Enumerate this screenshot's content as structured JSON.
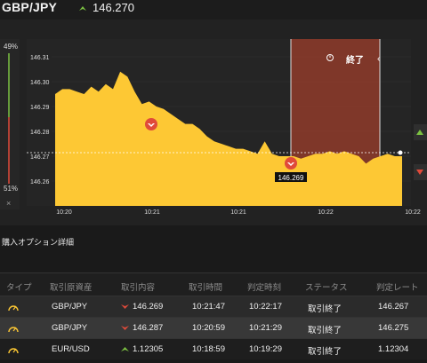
{
  "header": {
    "pair": "GBP/JPY",
    "price": "146.270",
    "price_direction": "up-arrow-icon",
    "up_color": "#7cc242"
  },
  "chart": {
    "end_label": "終了",
    "refresh_icon": "timer-icon",
    "current_marker": "146.269",
    "pct_high": "49%",
    "pct_low": "51%",
    "close_glyph": "×",
    "y_ticks": [
      "146.31",
      "146.30",
      "146.29",
      "146.28",
      "146.27",
      "146.26"
    ],
    "x_ticks": [
      "10:20",
      "10:21",
      "10:21",
      "10:22",
      "10:22"
    ],
    "fill_color": "#fdc834",
    "zone_color": "#8a3a2a"
  },
  "chart_data": {
    "type": "area",
    "ylim": [
      146.25,
      146.315
    ],
    "x_ticks": [
      "10:20",
      "10:21",
      "10:21",
      "10:22",
      "10:22"
    ],
    "series": [
      {
        "values": [
          146.295,
          146.297,
          146.297,
          146.296,
          146.295,
          146.298,
          146.296,
          146.299,
          146.297,
          146.304,
          146.302,
          146.296,
          146.291,
          146.292,
          146.29,
          146.289,
          146.287,
          146.285,
          146.283,
          146.283,
          146.281,
          146.278,
          146.276,
          146.275,
          146.274,
          146.273,
          146.273,
          146.272,
          146.271,
          146.276,
          146.271,
          146.27,
          146.27,
          146.27,
          146.269,
          146.27,
          146.271,
          146.271,
          146.272,
          146.271,
          146.272,
          146.271,
          146.27,
          146.267,
          146.269,
          146.27,
          146.271,
          146.27,
          146.27
        ]
      }
    ],
    "markers": [
      {
        "label": "",
        "value": 146.282
      },
      {
        "label": "146.269",
        "value": 146.269
      }
    ]
  },
  "section": {
    "title": "購入オプション詳細"
  },
  "table": {
    "headers": [
      "タイプ",
      "取引原資産",
      "取引内容",
      "取引時間",
      "判定時刻",
      "ステータス",
      "判定レート"
    ],
    "rows": [
      {
        "type_icon": "gauge-icon",
        "asset": "GBP/JPY",
        "direction": "down",
        "rate": "146.269",
        "time": "10:21:47",
        "judge": "10:22:17",
        "status": "取引終了",
        "result": "146.267"
      },
      {
        "type_icon": "gauge-icon",
        "asset": "GBP/JPY",
        "direction": "down",
        "rate": "146.287",
        "time": "10:20:59",
        "judge": "10:21:29",
        "status": "取引終了",
        "result": "146.275"
      },
      {
        "type_icon": "gauge-icon",
        "asset": "EUR/USD",
        "direction": "up",
        "rate": "1.12305",
        "time": "10:18:59",
        "judge": "10:19:29",
        "status": "取引終了",
        "result": "1.12304"
      }
    ],
    "down_color": "#e04a3a",
    "up_color": "#7cc242",
    "accent_color": "#fdc834"
  }
}
